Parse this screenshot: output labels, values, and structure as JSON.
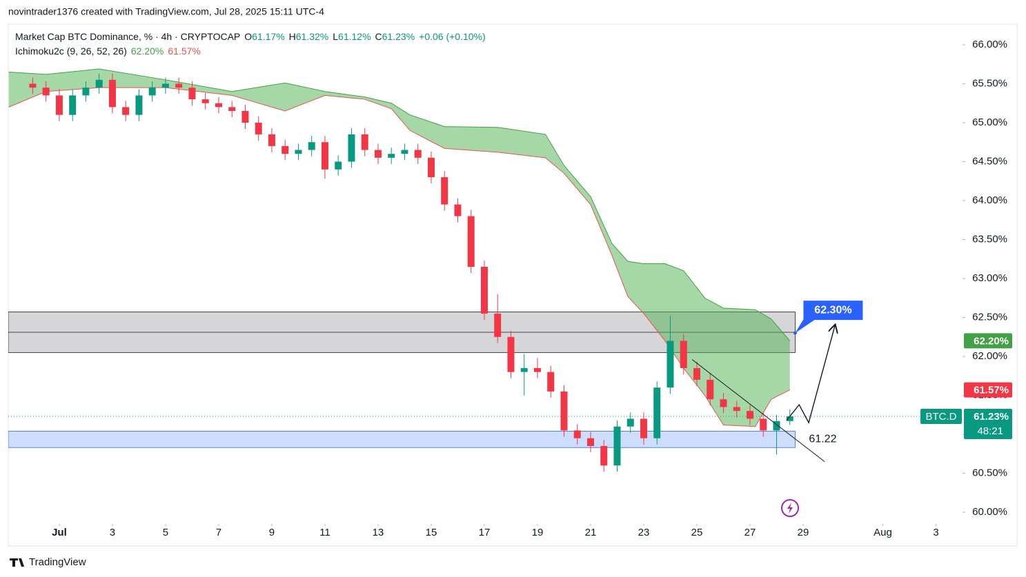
{
  "header": "novintrader1376 created with TradingView.com, Jul 28, 2025 15:11 UTC-4",
  "chart_data": {
    "type": "candlestick",
    "title": "Market Cap BTC Dominance, % · 4h · CRYPTOCAP",
    "ohlc_legend": [
      {
        "label": "O",
        "value": "61.17%"
      },
      {
        "label": "H",
        "value": "61.32%"
      },
      {
        "label": "L",
        "value": "61.12%"
      },
      {
        "label": "C",
        "value": "61.23%"
      }
    ],
    "change": "+0.06 (+0.10%)",
    "indicator": {
      "name": "Ichimoku2c (9, 26, 52, 26)",
      "labels": [
        "62.20%",
        "61.57%"
      ],
      "x": [
        -0.9,
        0.5,
        2.5,
        5,
        7.5,
        9.5,
        11,
        12.5,
        13.5,
        14.2,
        15.5,
        17.5,
        19.3,
        20,
        21,
        21.8,
        22.4,
        23,
        23.8,
        24.5,
        25.3,
        26,
        27.2,
        27.8,
        28.5
      ],
      "span_a": {
        "color": "#43a047",
        "values": [
          65.65,
          65.62,
          65.69,
          65.55,
          65.4,
          65.51,
          65.4,
          65.33,
          65.25,
          65.1,
          64.95,
          64.94,
          64.85,
          64.45,
          64.05,
          63.45,
          63.22,
          63.19,
          63.19,
          63.1,
          62.75,
          62.62,
          62.6,
          62.48,
          62.2
        ]
      },
      "span_b": {
        "color": "#ef5350",
        "values": [
          65.2,
          65.4,
          65.45,
          65.45,
          65.35,
          65.15,
          65.35,
          65.3,
          65.18,
          64.9,
          64.67,
          64.62,
          64.55,
          64.35,
          63.95,
          63.3,
          62.77,
          62.55,
          62.2,
          61.85,
          61.5,
          61.12,
          61.1,
          61.45,
          61.57
        ]
      },
      "fill": "rgba(76,175,80,0.5)"
    },
    "x": [
      0,
      0.5,
      1,
      1.5,
      2,
      2.5,
      3,
      3.5,
      4,
      4.5,
      5,
      5.5,
      6,
      6.5,
      7,
      7.5,
      8,
      8.5,
      9,
      9.5,
      10,
      10.5,
      11,
      11.5,
      12,
      12.5,
      13,
      13.5,
      14,
      14.5,
      15,
      15.5,
      16,
      16.5,
      17,
      17.5,
      18,
      18.5,
      19,
      19.5,
      20,
      20.5,
      21,
      21.5,
      22,
      22.5,
      23,
      23.5,
      24,
      24.5,
      25,
      25.5,
      26,
      26.5,
      27,
      27.5,
      28,
      28.5
    ],
    "open": [
      65.5,
      65.45,
      65.35,
      65.1,
      65.35,
      65.45,
      65.55,
      65.2,
      65.1,
      65.35,
      65.45,
      65.5,
      65.45,
      65.3,
      65.25,
      65.2,
      65.15,
      65.0,
      64.85,
      64.7,
      64.6,
      64.65,
      64.75,
      64.4,
      64.5,
      64.85,
      64.65,
      64.55,
      64.6,
      64.65,
      64.55,
      64.3,
      63.95,
      63.8,
      63.15,
      62.55,
      62.25,
      61.8,
      61.85,
      61.8,
      61.55,
      61.05,
      60.95,
      60.85,
      60.6,
      61.1,
      61.2,
      60.95,
      61.6,
      62.2,
      61.85,
      61.7,
      61.45,
      61.35,
      61.3,
      61.2,
      61.05,
      61.17
    ],
    "high": [
      65.58,
      65.53,
      65.43,
      65.43,
      65.53,
      65.63,
      65.63,
      65.28,
      65.43,
      65.53,
      65.58,
      65.58,
      65.53,
      65.38,
      65.33,
      65.28,
      65.23,
      65.08,
      64.93,
      64.78,
      64.73,
      64.83,
      64.83,
      64.58,
      64.93,
      64.93,
      64.73,
      64.68,
      64.73,
      64.73,
      64.63,
      64.38,
      64.03,
      63.88,
      63.23,
      62.8,
      62.33,
      62.03,
      61.98,
      61.88,
      61.63,
      61.13,
      61.03,
      60.93,
      61.18,
      61.28,
      61.28,
      61.68,
      62.52,
      62.28,
      61.93,
      61.78,
      61.53,
      61.43,
      61.38,
      61.28,
      61.25,
      61.32
    ],
    "low": [
      65.37,
      65.27,
      65.02,
      65.02,
      65.27,
      65.37,
      65.12,
      65.02,
      65.02,
      65.27,
      65.37,
      65.37,
      65.22,
      65.17,
      65.12,
      65.07,
      64.92,
      64.77,
      64.62,
      64.52,
      64.52,
      64.57,
      64.28,
      64.32,
      64.42,
      64.57,
      64.47,
      64.47,
      64.52,
      64.47,
      64.22,
      63.87,
      63.72,
      63.07,
      62.47,
      62.17,
      61.72,
      61.5,
      61.72,
      61.47,
      60.97,
      60.87,
      60.77,
      60.52,
      60.52,
      61.02,
      60.87,
      60.87,
      61.52,
      61.77,
      61.62,
      61.37,
      61.27,
      61.22,
      61.12,
      60.97,
      60.74,
      61.12
    ],
    "close": [
      65.45,
      65.35,
      65.1,
      65.35,
      65.45,
      65.55,
      65.2,
      65.1,
      65.35,
      65.45,
      65.5,
      65.45,
      65.3,
      65.25,
      65.2,
      65.15,
      65.0,
      64.85,
      64.7,
      64.6,
      64.65,
      64.75,
      64.4,
      64.5,
      64.85,
      64.65,
      64.55,
      64.6,
      64.65,
      64.55,
      64.3,
      63.95,
      63.8,
      63.15,
      62.55,
      62.25,
      61.8,
      61.85,
      61.8,
      61.55,
      61.05,
      60.95,
      60.85,
      60.6,
      61.1,
      61.2,
      60.95,
      61.6,
      62.2,
      61.85,
      61.7,
      61.45,
      61.35,
      61.3,
      61.2,
      61.05,
      61.17,
      61.23
    ],
    "up_color": "#089981",
    "down_color": "#f23645",
    "xlim": [
      -0.92,
      35
    ],
    "xticks": [
      {
        "value": 1,
        "label": "Jul"
      },
      3,
      5,
      7,
      9,
      11,
      13,
      15,
      17,
      19,
      21,
      23,
      25,
      27,
      29,
      {
        "value": 32,
        "label": "Aug"
      },
      {
        "value": 34,
        "label": "3"
      }
    ],
    "ylim": [
      59.85,
      66.265
    ],
    "yticks": [
      {
        "value": 60,
        "label": "60.00%"
      },
      {
        "value": 60.5,
        "label": "60.50%"
      },
      {
        "value": 61,
        "label": "61.00%"
      },
      {
        "value": 61.5,
        "label": "61.50%"
      },
      {
        "value": 62,
        "label": "62.00%"
      },
      {
        "value": 62.5,
        "label": "62.50%"
      },
      {
        "value": 63,
        "label": "63.00%"
      },
      {
        "value": 63.5,
        "label": "63.50%"
      },
      {
        "value": 64,
        "label": "64.00%"
      },
      {
        "value": 64.5,
        "label": "64.50%"
      },
      {
        "value": 65,
        "label": "65.00%"
      },
      {
        "value": 65.5,
        "label": "65.50%"
      },
      {
        "value": 66,
        "label": "66.00%"
      }
    ],
    "symbol": "BTC.D",
    "countdown": "48:21",
    "zones": [
      {
        "xlim": [
          -0.92,
          28.7
        ],
        "ylim": [
          62.05,
          62.57
        ],
        "mid": 62.31,
        "color": "#d1d1d4"
      },
      {
        "xlim": [
          -0.92,
          28.7
        ],
        "ylim": [
          60.83,
          61.04
        ],
        "color": "#c9d9fb",
        "label": "61.22"
      }
    ],
    "trendline": {
      "x": [
        24.82,
        29.81
      ],
      "values": [
        61.96,
        60.65
      ]
    },
    "projection": {
      "x": [
        28.38,
        28.85,
        29.21,
        30.2
      ],
      "values": [
        61.18,
        61.38,
        61.15,
        62.4
      ]
    },
    "target": {
      "x": 28.7,
      "value": 62.3,
      "label": "62.30%"
    }
  },
  "footer": "TradingView"
}
